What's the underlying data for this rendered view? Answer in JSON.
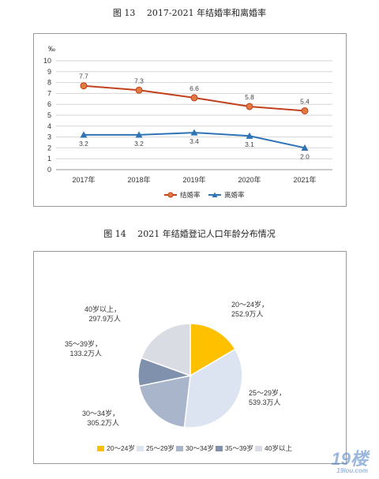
{
  "figures": {
    "fig13_title": "图 13　 2017-2021 年结婚率和离婚率",
    "fig14_title": "图 14　 2021 年结婚登记人口年龄分布情况"
  },
  "watermark": {
    "main": "19楼",
    "sub": "19lou.com"
  },
  "chart_data": [
    {
      "type": "line",
      "title": "图 13　 2017-2021 年结婚率和离婚率",
      "ylabel": "‰",
      "categories": [
        "2017年",
        "2018年",
        "2019年",
        "2020年",
        "2021年"
      ],
      "ylim": [
        0,
        10
      ],
      "yticks": [
        0,
        1,
        2,
        3,
        4,
        5,
        6,
        7,
        8,
        9,
        10
      ],
      "grid": true,
      "legend": "bottom",
      "series": [
        {
          "name": "结婚率",
          "values": [
            7.7,
            7.3,
            6.6,
            5.8,
            5.4
          ],
          "labels": [
            "7.7",
            "7.3",
            "6.6",
            "5.8",
            "5.4"
          ],
          "color": "#c0411c",
          "marker": "circle"
        },
        {
          "name": "离婚率",
          "values": [
            3.2,
            3.2,
            3.4,
            3.1,
            2.0
          ],
          "labels": [
            "3.2",
            "3.2",
            "3.4",
            "3.1",
            "2.0"
          ],
          "color": "#2e74b5",
          "marker": "triangle"
        }
      ]
    },
    {
      "type": "pie",
      "title": "图 14　 2021 年结婚登记人口年龄分布情况",
      "legend": "bottom",
      "slices": [
        {
          "name": "20～24岁",
          "value": 252.9,
          "label_lines": [
            "20～24岁，",
            "252.9万人"
          ],
          "color": "#ffc000"
        },
        {
          "name": "25～29岁",
          "value": 539.3,
          "label_lines": [
            "25～29岁，",
            "539.3万人"
          ],
          "color": "#dbe4f0"
        },
        {
          "name": "30～34岁",
          "value": 305.2,
          "label_lines": [
            "30～34岁，",
            "305.2万人"
          ],
          "color": "#a9b5cb"
        },
        {
          "name": "35～39岁",
          "value": 133.2,
          "label_lines": [
            "35～39岁，",
            "133.2万人"
          ],
          "color": "#7f91ad"
        },
        {
          "name": "40岁以上",
          "value": 297.9,
          "label_lines": [
            "40岁以上，",
            "297.9万人"
          ],
          "color": "#d9dde3"
        }
      ]
    }
  ]
}
